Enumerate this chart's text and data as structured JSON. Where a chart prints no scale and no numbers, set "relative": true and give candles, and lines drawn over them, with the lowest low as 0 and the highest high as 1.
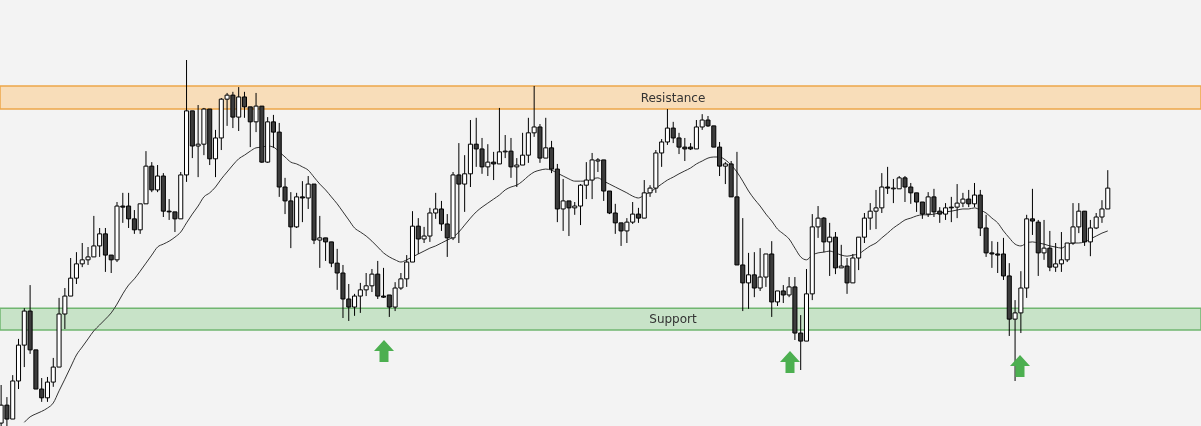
{
  "chart_data": {
    "type": "candlestick",
    "relative": true,
    "categories": [
      null,
      null,
      null,
      null,
      null,
      null,
      null,
      null,
      null,
      null,
      null,
      null,
      null,
      null,
      null,
      null,
      null,
      null,
      null,
      null,
      null,
      null,
      null,
      null,
      null,
      null,
      null,
      null,
      null,
      null,
      null,
      null,
      null,
      null,
      null,
      null,
      null,
      null,
      null,
      null,
      null,
      null,
      null,
      null,
      null,
      null,
      null,
      null,
      null,
      null,
      null,
      null,
      null,
      null,
      null,
      null,
      null,
      null,
      null,
      null,
      null,
      null,
      null,
      null,
      null,
      null,
      null,
      null,
      null,
      null,
      null,
      null,
      null,
      null,
      null,
      null,
      null,
      null,
      null,
      null,
      null,
      null,
      null,
      null,
      null,
      null,
      null,
      null,
      null,
      null,
      null,
      null,
      null,
      null,
      null,
      null,
      null,
      null,
      null,
      null,
      null,
      null,
      null,
      null,
      null,
      null,
      null,
      null,
      null,
      null,
      null,
      null,
      null,
      null,
      null,
      null,
      null,
      null,
      null,
      null,
      null,
      null,
      null,
      null,
      null,
      null,
      null,
      null,
      null,
      null,
      null,
      null,
      null,
      null,
      null,
      null,
      null,
      null,
      null,
      null,
      null,
      null,
      null,
      null,
      null,
      null,
      null,
      null,
      null,
      null,
      null,
      null,
      null,
      null,
      null,
      null,
      null,
      null,
      null,
      null,
      null,
      null,
      null,
      null,
      null,
      null,
      null,
      null,
      null,
      null,
      null,
      null,
      null,
      null,
      null,
      null,
      null,
      null,
      null,
      null,
      null,
      null,
      null,
      null,
      null,
      null,
      null,
      null,
      null,
      null,
      null,
      null
    ],
    "ohlc": [
      [
        0.008,
        0.112,
        0,
        0.057
      ],
      [
        0.057,
        0.079,
        0,
        0.019
      ],
      [
        0.019,
        0.139,
        0.019,
        0.123
      ],
      [
        0.123,
        0.238,
        0.101,
        0.221
      ],
      [
        0.221,
        0.322,
        0.161,
        0.314
      ],
      [
        0.314,
        0.385,
        0.197,
        0.208
      ],
      [
        0.208,
        0.208,
        0.101,
        0.101
      ],
      [
        0.101,
        0.131,
        0.066,
        0.077
      ],
      [
        0.077,
        0.134,
        0.066,
        0.12
      ],
      [
        0.12,
        0.186,
        0.107,
        0.161
      ],
      [
        0.161,
        0.35,
        0.161,
        0.306
      ],
      [
        0.306,
        0.377,
        0.265,
        0.355
      ],
      [
        0.355,
        0.459,
        0.355,
        0.404
      ],
      [
        0.404,
        0.475,
        0.388,
        0.443
      ],
      [
        0.443,
        0.5,
        0.434,
        0.454
      ],
      [
        0.454,
        0.489,
        0.44,
        0.462
      ],
      [
        0.462,
        0.574,
        0.462,
        0.492
      ],
      [
        0.492,
        0.541,
        0.462,
        0.525
      ],
      [
        0.525,
        0.541,
        0.421,
        0.467
      ],
      [
        0.467,
        0.467,
        0.418,
        0.454
      ],
      [
        0.454,
        0.612,
        0.448,
        0.601
      ],
      [
        0.601,
        0.637,
        0.555,
        0.598
      ],
      [
        0.601,
        0.637,
        0.541,
        0.566
      ],
      [
        0.566,
        0.59,
        0.525,
        0.536
      ],
      [
        0.536,
        0.607,
        0.525,
        0.607
      ],
      [
        0.607,
        0.751,
        0.607,
        0.71
      ],
      [
        0.71,
        0.721,
        0.639,
        0.645
      ],
      [
        0.645,
        0.713,
        0.639,
        0.683
      ],
      [
        0.683,
        0.691,
        0.571,
        0.587
      ],
      [
        0.587,
        0.62,
        0.563,
        0.585
      ],
      [
        0.585,
        0.585,
        0.53,
        0.566
      ],
      [
        0.566,
        0.694,
        0.566,
        0.686
      ],
      [
        0.686,
        1,
        0.667,
        0.861
      ],
      [
        0.861,
        0.861,
        0.732,
        0.765
      ],
      [
        0.765,
        0.877,
        0.68,
        0.77
      ],
      [
        0.77,
        0.869,
        0.74,
        0.866
      ],
      [
        0.866,
        0.866,
        0.713,
        0.73
      ],
      [
        0.73,
        0.809,
        0.68,
        0.787
      ],
      [
        0.787,
        0.896,
        0.754,
        0.893
      ],
      [
        0.893,
        0.91,
        0.82,
        0.904
      ],
      [
        0.904,
        0.913,
        0.814,
        0.844
      ],
      [
        0.844,
        0.926,
        0.806,
        0.899
      ],
      [
        0.899,
        0.913,
        0.842,
        0.872
      ],
      [
        0.872,
        0.872,
        0.762,
        0.831
      ],
      [
        0.831,
        0.91,
        0.803,
        0.874
      ],
      [
        0.874,
        0.874,
        0.719,
        0.721
      ],
      [
        0.721,
        0.844,
        0.719,
        0.831
      ],
      [
        0.831,
        0.85,
        0.76,
        0.803
      ],
      [
        0.803,
        0.828,
        0.626,
        0.653
      ],
      [
        0.653,
        0.678,
        0.579,
        0.615
      ],
      [
        0.615,
        0.639,
        0.486,
        0.544
      ],
      [
        0.544,
        0.637,
        0.541,
        0.626
      ],
      [
        0.626,
        0.669,
        0.557,
        0.623
      ],
      [
        0.623,
        0.683,
        0.593,
        0.661
      ],
      [
        0.661,
        0.661,
        0.497,
        0.508
      ],
      [
        0.508,
        0.574,
        0.432,
        0.514
      ],
      [
        0.514,
        0.514,
        0.451,
        0.503
      ],
      [
        0.503,
        0.503,
        0.434,
        0.445
      ],
      [
        0.445,
        0.484,
        0.372,
        0.418
      ],
      [
        0.418,
        0.44,
        0.295,
        0.347
      ],
      [
        0.347,
        0.388,
        0.287,
        0.325
      ],
      [
        0.325,
        0.361,
        0.301,
        0.355
      ],
      [
        0.355,
        0.391,
        0.309,
        0.372
      ],
      [
        0.372,
        0.418,
        0.355,
        0.383
      ],
      [
        0.383,
        0.429,
        0.366,
        0.415
      ],
      [
        0.415,
        0.451,
        0.347,
        0.355
      ],
      [
        0.355,
        0.432,
        0.35,
        0.352
      ],
      [
        0.358,
        0.358,
        0.298,
        0.325
      ],
      [
        0.325,
        0.393,
        0.314,
        0.377
      ],
      [
        0.377,
        0.418,
        0.372,
        0.402
      ],
      [
        0.402,
        0.467,
        0.38,
        0.448
      ],
      [
        0.448,
        0.587,
        0.448,
        0.546
      ],
      [
        0.546,
        0.568,
        0.47,
        0.511
      ],
      [
        0.511,
        0.544,
        0.5,
        0.519
      ],
      [
        0.519,
        0.596,
        0.503,
        0.582
      ],
      [
        0.582,
        0.637,
        0.566,
        0.593
      ],
      [
        0.593,
        0.615,
        0.533,
        0.552
      ],
      [
        0.552,
        0.579,
        0.462,
        0.514
      ],
      [
        0.514,
        0.694,
        0.508,
        0.686
      ],
      [
        0.686,
        0.773,
        0.5,
        0.661
      ],
      [
        0.661,
        0.74,
        0.585,
        0.689
      ],
      [
        0.689,
        0.836,
        0.653,
        0.77
      ],
      [
        0.77,
        0.842,
        0.708,
        0.757
      ],
      [
        0.757,
        0.787,
        0.689,
        0.708
      ],
      [
        0.708,
        0.77,
        0.683,
        0.721
      ],
      [
        0.721,
        0.749,
        0.672,
        0.716
      ],
      [
        0.716,
        0.869,
        0.716,
        0.749
      ],
      [
        0.749,
        0.795,
        0.732,
        0.751
      ],
      [
        0.751,
        0.787,
        0.678,
        0.708
      ],
      [
        0.708,
        0.732,
        0.653,
        0.713
      ],
      [
        0.713,
        0.801,
        0.713,
        0.74
      ],
      [
        0.74,
        0.842,
        0.719,
        0.801
      ],
      [
        0.801,
        0.929,
        0.79,
        0.817
      ],
      [
        0.817,
        0.825,
        0.719,
        0.732
      ],
      [
        0.732,
        0.842,
        0.732,
        0.76
      ],
      [
        0.76,
        0.779,
        0.691,
        0.702
      ],
      [
        0.702,
        0.716,
        0.557,
        0.593
      ],
      [
        0.593,
        0.675,
        0.533,
        0.615
      ],
      [
        0.615,
        0.615,
        0.519,
        0.596
      ],
      [
        0.596,
        0.612,
        0.577,
        0.601
      ],
      [
        0.601,
        0.661,
        0.549,
        0.658
      ],
      [
        0.658,
        0.721,
        0.62,
        0.672
      ],
      [
        0.672,
        0.746,
        0.62,
        0.727
      ],
      [
        0.724,
        0.732,
        0.694,
        0.727
      ],
      [
        0.727,
        0.727,
        0.615,
        0.642
      ],
      [
        0.642,
        0.642,
        0.579,
        0.582
      ],
      [
        0.582,
        0.607,
        0.525,
        0.555
      ],
      [
        0.555,
        0.555,
        0.492,
        0.533
      ],
      [
        0.533,
        0.568,
        0.5,
        0.557
      ],
      [
        0.557,
        0.612,
        0.552,
        0.579
      ],
      [
        0.579,
        0.596,
        0.555,
        0.568
      ],
      [
        0.568,
        0.672,
        0.568,
        0.637
      ],
      [
        0.637,
        0.658,
        0.626,
        0.65
      ],
      [
        0.65,
        0.754,
        0.637,
        0.746
      ],
      [
        0.746,
        0.784,
        0.708,
        0.776
      ],
      [
        0.776,
        0.866,
        0.768,
        0.814
      ],
      [
        0.814,
        0.831,
        0.773,
        0.787
      ],
      [
        0.787,
        0.801,
        0.743,
        0.762
      ],
      [
        0.762,
        0.787,
        0.724,
        0.757
      ],
      [
        0.762,
        0.773,
        0.754,
        0.757
      ],
      [
        0.757,
        0.836,
        0.757,
        0.817
      ],
      [
        0.817,
        0.852,
        0.809,
        0.836
      ],
      [
        0.836,
        0.847,
        0.817,
        0.82
      ],
      [
        0.82,
        0.82,
        0.762,
        0.762
      ],
      [
        0.762,
        0.776,
        0.683,
        0.71
      ],
      [
        0.71,
        0.721,
        0.661,
        0.716
      ],
      [
        0.716,
        0.724,
        0.626,
        0.626
      ],
      [
        0.626,
        0.749,
        0.44,
        0.44
      ],
      [
        0.44,
        0.568,
        0.314,
        0.391
      ],
      [
        0.391,
        0.473,
        0.32,
        0.413
      ],
      [
        0.413,
        0.475,
        0.352,
        0.377
      ],
      [
        0.377,
        0.486,
        0.369,
        0.407
      ],
      [
        0.407,
        0.47,
        0.38,
        0.47
      ],
      [
        0.47,
        0.505,
        0.298,
        0.339
      ],
      [
        0.339,
        0.369,
        0.328,
        0.369
      ],
      [
        0.369,
        0.385,
        0.336,
        0.358
      ],
      [
        0.358,
        0.407,
        0.352,
        0.38
      ],
      [
        0.38,
        0.407,
        0.235,
        0.254
      ],
      [
        0.254,
        0.303,
        0.153,
        0.232
      ],
      [
        0.232,
        0.429,
        0.232,
        0.361
      ],
      [
        0.361,
        0.579,
        0.344,
        0.544
      ],
      [
        0.544,
        0.601,
        0.514,
        0.568
      ],
      [
        0.568,
        0.571,
        0.475,
        0.503
      ],
      [
        0.503,
        0.555,
        0.41,
        0.516
      ],
      [
        0.516,
        0.53,
        0.415,
        0.432
      ],
      [
        0.432,
        0.495,
        0.432,
        0.437
      ],
      [
        0.437,
        0.459,
        0.361,
        0.391
      ],
      [
        0.391,
        0.47,
        0.391,
        0.459
      ],
      [
        0.459,
        0.516,
        0.426,
        0.516
      ],
      [
        0.516,
        0.582,
        0.5,
        0.568
      ],
      [
        0.568,
        0.609,
        0.536,
        0.587
      ],
      [
        0.587,
        0.645,
        0.538,
        0.596
      ],
      [
        0.596,
        0.691,
        0.582,
        0.653
      ],
      [
        0.653,
        0.708,
        0.634,
        0.65
      ],
      [
        0.648,
        0.675,
        0.609,
        0.65
      ],
      [
        0.648,
        0.683,
        0.648,
        0.678
      ],
      [
        0.678,
        0.683,
        0.612,
        0.653
      ],
      [
        0.653,
        0.664,
        0.607,
        0.637
      ],
      [
        0.637,
        0.637,
        0.585,
        0.612
      ],
      [
        0.612,
        0.612,
        0.566,
        0.579
      ],
      [
        0.579,
        0.639,
        0.571,
        0.626
      ],
      [
        0.626,
        0.648,
        0.571,
        0.585
      ],
      [
        0.587,
        0.598,
        0.555,
        0.579
      ],
      [
        0.579,
        0.609,
        0.563,
        0.596
      ],
      [
        0.598,
        0.626,
        0.557,
        0.596
      ],
      [
        0.598,
        0.661,
        0.568,
        0.609
      ],
      [
        0.609,
        0.637,
        0.598,
        0.62
      ],
      [
        0.62,
        0.645,
        0.598,
        0.607
      ],
      [
        0.607,
        0.664,
        0.598,
        0.631
      ],
      [
        0.631,
        0.645,
        0.519,
        0.541
      ],
      [
        0.541,
        0.577,
        0.462,
        0.473
      ],
      [
        0.473,
        0.505,
        0.432,
        0.47
      ],
      [
        0.47,
        0.503,
        0.418,
        0.467
      ],
      [
        0.47,
        0.514,
        0.399,
        0.41
      ],
      [
        0.41,
        0.445,
        0.246,
        0.292
      ],
      [
        0.292,
        0.344,
        0.123,
        0.309
      ],
      [
        0.309,
        0.423,
        0.254,
        0.377
      ],
      [
        0.377,
        0.577,
        0.35,
        0.566
      ],
      [
        0.566,
        0.648,
        0.522,
        0.56
      ],
      [
        0.557,
        0.563,
        0.41,
        0.473
      ],
      [
        0.473,
        0.563,
        0.454,
        0.486
      ],
      [
        0.486,
        0.533,
        0.423,
        0.434
      ],
      [
        0.434,
        0.5,
        0.421,
        0.443
      ],
      [
        0.443,
        0.53,
        0.421,
        0.454
      ],
      [
        0.454,
        0.5,
        0.448,
        0.5
      ],
      [
        0.5,
        0.609,
        0.495,
        0.544
      ],
      [
        0.544,
        0.609,
        0.527,
        0.587
      ],
      [
        0.587,
        0.587,
        0.492,
        0.503
      ],
      [
        0.503,
        0.563,
        0.464,
        0.541
      ],
      [
        0.541,
        0.582,
        0.538,
        0.571
      ],
      [
        0.571,
        0.617,
        0.555,
        0.593
      ],
      [
        0.593,
        0.699,
        0.593,
        0.65
      ]
    ],
    "series": [
      {
        "type": "line",
        "color": "#333333",
        "values": [
          null,
          null,
          null,
          null,
          0.01,
          0.025,
          0.033,
          0.04,
          0.049,
          0.063,
          0.096,
          0.128,
          0.161,
          0.194,
          0.216,
          0.238,
          0.26,
          0.276,
          0.292,
          0.309,
          0.333,
          0.361,
          0.385,
          0.402,
          0.423,
          0.445,
          0.467,
          0.489,
          0.497,
          0.505,
          0.516,
          0.53,
          0.555,
          0.579,
          0.601,
          0.626,
          0.637,
          0.653,
          0.675,
          0.694,
          0.713,
          0.73,
          0.74,
          0.751,
          0.76,
          0.762,
          0.765,
          0.762,
          0.749,
          0.735,
          0.721,
          0.716,
          0.708,
          0.699,
          0.68,
          0.661,
          0.645,
          0.626,
          0.607,
          0.585,
          0.563,
          0.541,
          0.53,
          0.519,
          0.505,
          0.489,
          0.473,
          0.462,
          0.454,
          0.448,
          0.454,
          0.462,
          0.47,
          0.478,
          0.486,
          0.492,
          0.5,
          0.508,
          0.516,
          0.53,
          0.549,
          0.568,
          0.585,
          0.598,
          0.609,
          0.62,
          0.631,
          0.645,
          0.653,
          0.658,
          0.669,
          0.683,
          0.694,
          0.699,
          0.702,
          0.699,
          0.691,
          0.683,
          0.675,
          0.669,
          0.669,
          0.669,
          0.675,
          0.678,
          0.669,
          0.661,
          0.653,
          0.645,
          0.637,
          0.628,
          0.623,
          0.631,
          0.639,
          0.65,
          0.661,
          0.672,
          0.68,
          0.689,
          0.697,
          0.705,
          0.716,
          0.724,
          0.732,
          0.735,
          0.735,
          0.727,
          0.713,
          0.694,
          0.669,
          0.642,
          0.62,
          0.601,
          0.579,
          0.56,
          0.538,
          0.525,
          0.511,
          0.486,
          0.462,
          0.454,
          0.467,
          0.473,
          0.475,
          0.478,
          0.473,
          0.467,
          0.464,
          0.467,
          0.47,
          0.481,
          0.492,
          0.5,
          0.514,
          0.527,
          0.541,
          0.552,
          0.563,
          0.568,
          0.574,
          0.577,
          0.577,
          0.579,
          0.582,
          0.585,
          0.587,
          0.59,
          0.593,
          0.593,
          0.596,
          0.59,
          0.582,
          0.568,
          0.555,
          0.533,
          0.514,
          0.497,
          0.492,
          0.5,
          0.503,
          0.5,
          0.497,
          0.492,
          0.489,
          0.486,
          0.495,
          0.5,
          0.5,
          0.503,
          0.511,
          0.519,
          0.527,
          0.533
        ]
      }
    ],
    "bands": [
      {
        "axis": "y",
        "from": 0.866,
        "to": 0.929,
        "label": "Resistance",
        "color": "#f8ddb9"
      },
      {
        "axis": "y",
        "from": 0.262,
        "to": 0.322,
        "label": "Support",
        "color": "#c8e3c8"
      }
    ]
  }
}
